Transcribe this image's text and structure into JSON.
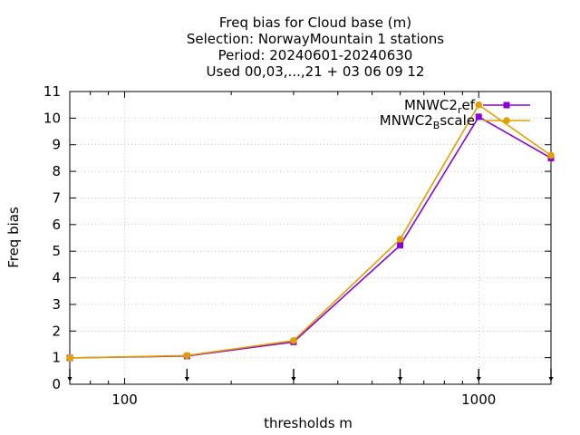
{
  "chart_data": {
    "type": "line",
    "title_lines": [
      "Freq bias  for Cloud base (m)",
      "Selection: NorwayMountain      1 stations",
      "Period: 20240601-20240630",
      "Used 00,03,...,21 + 03 06 09 12"
    ],
    "xlabel": "thresholds m",
    "ylabel": "Freq bias",
    "x_scale": "log",
    "xlim": [
      70,
      1600
    ],
    "ylim": [
      0,
      11
    ],
    "x_ticks": [
      {
        "value": 100,
        "label": "100"
      },
      {
        "value": 1000,
        "label": "1000"
      }
    ],
    "y_ticks": [
      0,
      1,
      2,
      3,
      4,
      5,
      6,
      7,
      8,
      9,
      10,
      11
    ],
    "grid": true,
    "legend_position": "top-right",
    "threshold_marker_x": [
      70,
      150,
      300,
      600,
      1000,
      1600
    ],
    "series": [
      {
        "name_main": "MNWC2",
        "name_sub": "r",
        "name_rest": "ef",
        "color": "#8b00d4",
        "marker": "filled-square",
        "x": [
          70,
          150,
          300,
          600,
          1000,
          1600
        ],
        "y": [
          0.99,
          1.06,
          1.59,
          5.22,
          10.05,
          8.5
        ]
      },
      {
        "name_main": "MNWC2",
        "name_sub": "B",
        "name_rest": "scale",
        "color": "#e0a000",
        "marker": "filled-circle",
        "x": [
          70,
          150,
          300,
          600,
          1000,
          1600
        ],
        "y": [
          0.99,
          1.08,
          1.64,
          5.45,
          10.5,
          8.6
        ]
      }
    ]
  }
}
